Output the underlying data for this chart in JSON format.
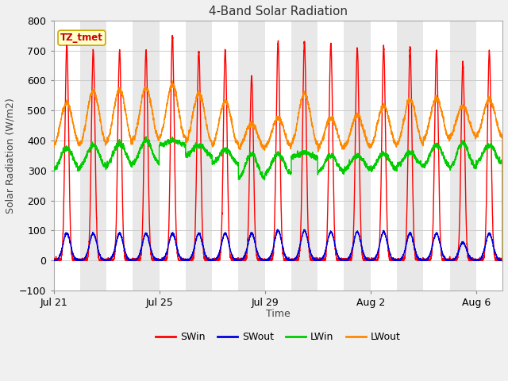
{
  "title": "4-Band Solar Radiation",
  "xlabel": "Time",
  "ylabel": "Solar Radiation (W/m2)",
  "ylim": [
    -100,
    800
  ],
  "yticks": [
    -100,
    0,
    100,
    200,
    300,
    400,
    500,
    600,
    700,
    800
  ],
  "plot_bg_white": "#ffffff",
  "plot_bg_gray": "#e8e8e8",
  "fig_bg": "#f0f0f0",
  "grid_color": "#cccccc",
  "annotation_text": "TZ_tmet",
  "annotation_color": "#cc0000",
  "annotation_bg": "#ffffcc",
  "annotation_border": "#ccaa00",
  "series_colors": {
    "SWin": "#ff0000",
    "SWout": "#0000dd",
    "LWin": "#00cc00",
    "LWout": "#ff8800"
  },
  "n_days": 17,
  "SWin_peak": [
    720,
    700,
    700,
    700,
    750,
    700,
    700,
    610,
    730,
    730,
    720,
    710,
    710,
    710,
    700,
    660,
    695
  ],
  "SWout_peak": [
    90,
    90,
    90,
    90,
    90,
    90,
    90,
    90,
    100,
    100,
    95,
    95,
    95,
    90,
    90,
    60,
    90
  ],
  "LWin_base": [
    305,
    315,
    320,
    325,
    385,
    350,
    325,
    275,
    290,
    345,
    295,
    305,
    305,
    315,
    315,
    310,
    325
  ],
  "LWin_peak": [
    375,
    385,
    390,
    400,
    400,
    385,
    370,
    355,
    355,
    360,
    350,
    350,
    355,
    360,
    385,
    390,
    385
  ],
  "LWout_base": [
    385,
    390,
    395,
    405,
    410,
    395,
    385,
    375,
    380,
    390,
    375,
    380,
    385,
    390,
    405,
    415,
    415
  ],
  "LWout_peak": [
    525,
    565,
    570,
    575,
    585,
    555,
    530,
    455,
    475,
    555,
    475,
    485,
    515,
    535,
    540,
    515,
    535
  ],
  "xtick_positions": [
    0,
    4,
    8,
    12,
    16
  ],
  "xtick_labels": [
    "Jul 21",
    "Jul 25",
    "Jul 29",
    "Aug 2",
    "Aug 6"
  ]
}
